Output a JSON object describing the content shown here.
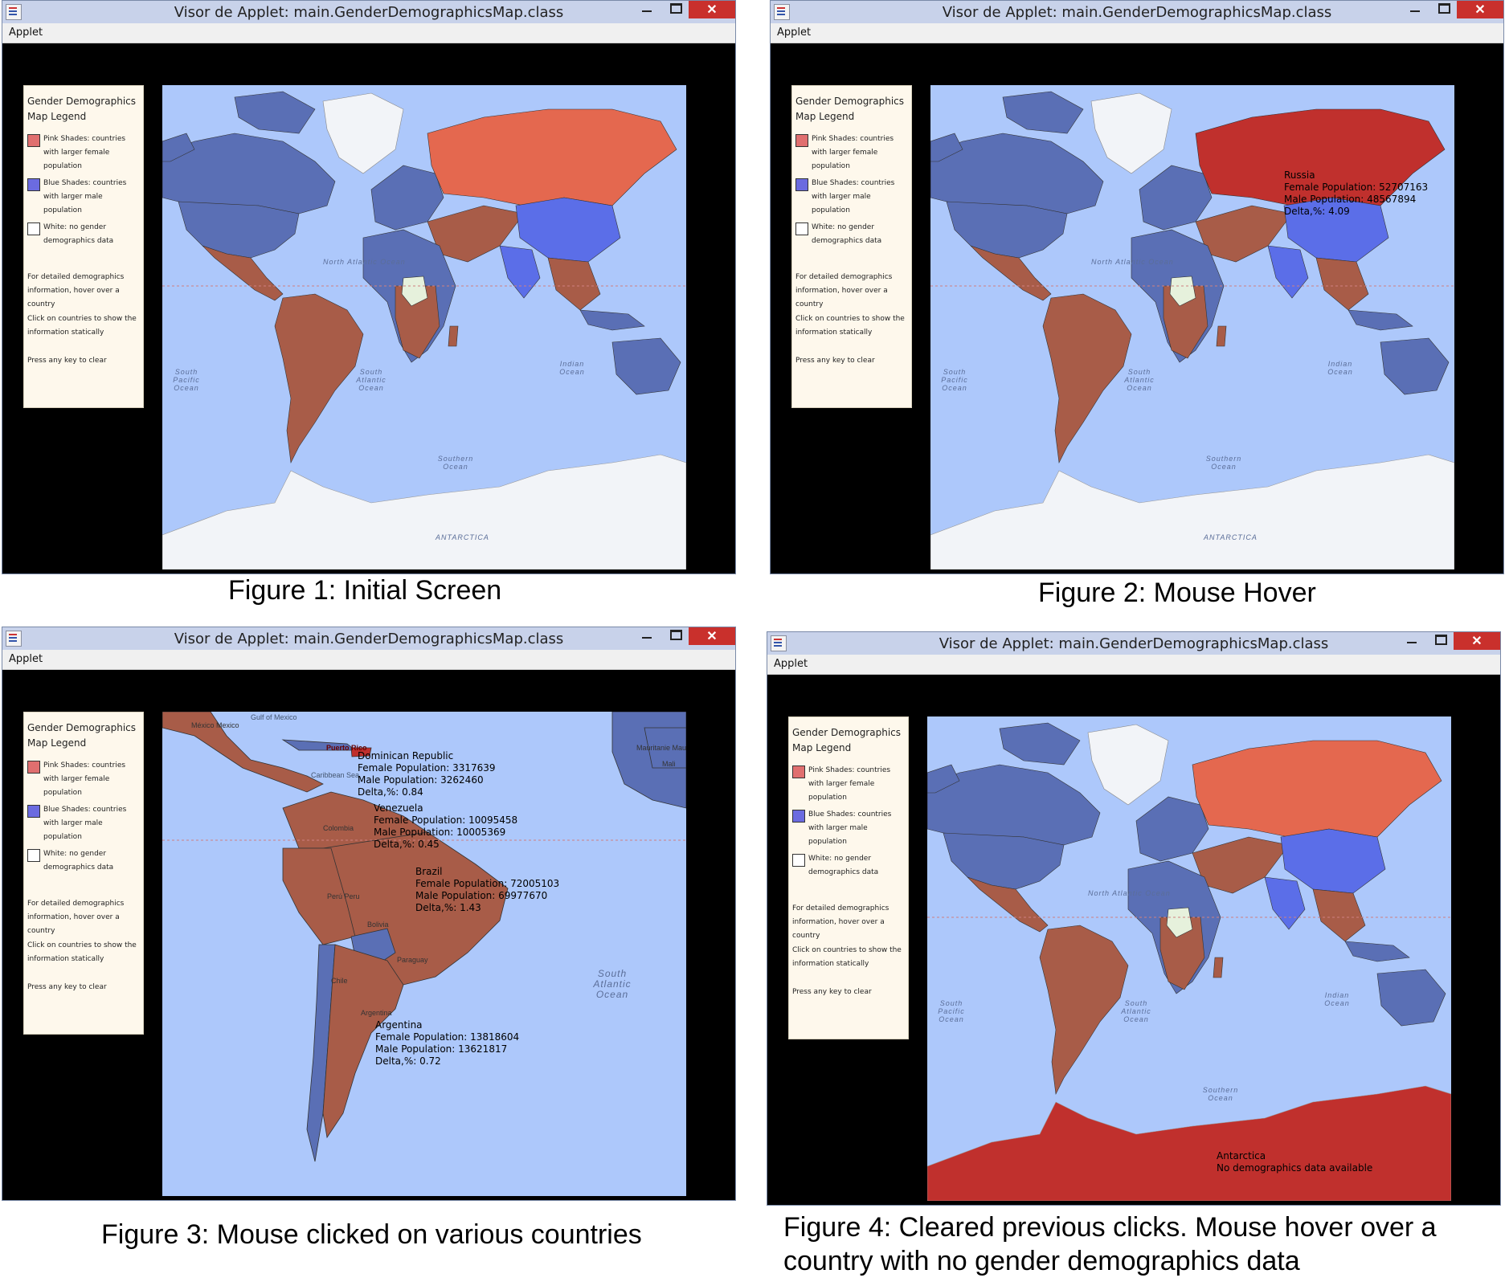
{
  "window_title": "Visor de Applet: main.GenderDemographicsMap.class",
  "menu_applet": "Applet",
  "legend": {
    "title": "Gender Demographics Map Legend",
    "pink": "Pink Shades: countries with larger female population",
    "blue": "Blue Shades: countries with larger male population",
    "white": "White: no gender demographics data",
    "hover_note": "For detailed demographics information, hover over a country",
    "click_note": "Click on countries to show the information statically",
    "clear_note": "Press any key to clear"
  },
  "colors": {
    "pink_swatch": "#e06f6f",
    "blue_swatch": "#6b6be0",
    "female_fill": "#a85c48",
    "male_fill": "#5a6fb5",
    "selected_female": "#e4684f",
    "hovered": "#c0302d",
    "ocean": "#adc8fb",
    "ice": "#f2f4f8"
  },
  "ocean_labels": {
    "north_atlantic": "North Atlantic Ocean",
    "south_pacific": "South Pacific Ocean",
    "south_atlantic": "South Atlantic Ocean",
    "indian": "Indian Ocean",
    "southern": "Southern Ocean",
    "antarctica": "ANTARCTICA"
  },
  "figure2_tooltip": {
    "country": "Russia",
    "female": "Female Population: 52707163",
    "male": "Male Population: 48567894",
    "delta": "Delta,%: 4.09"
  },
  "figure3_tooltips": [
    {
      "country": "Dominican Republic",
      "female": "Female Population: 3317639",
      "male": "Male Population: 3262460",
      "delta": "Delta,%: 0.84"
    },
    {
      "country": "Venezuela",
      "female": "Female Population: 10095458",
      "male": "Male Population: 10005369",
      "delta": "Delta,%: 0.45"
    },
    {
      "country": "Brazil",
      "female": "Female Population: 72005103",
      "male": "Male Population: 69977670",
      "delta": "Delta,%: 1.43"
    },
    {
      "country": "Argentina",
      "female": "Female Population: 13818604",
      "male": "Male Population: 13621817",
      "delta": "Delta,%: 0.72"
    }
  ],
  "figure3_labels": {
    "puerto_rico": "Puerto Rico",
    "gulf_of_mexico": "Gulf of Mexico",
    "mexico": "México Mexico",
    "caribbean": "Caribbean Sea",
    "colombia": "Colombia",
    "peru": "Perú Peru",
    "bolivia": "Bolivia",
    "paraguay": "Paraguay",
    "chile": "Chile",
    "argentina_map": "Argentina",
    "mauritania": "Mauritanie Mauritania",
    "mali": "Mali",
    "south_atlantic": "South Atlantic Ocean"
  },
  "figure4_tooltip": {
    "country": "Antarctica",
    "note": "No demographics data available"
  },
  "captions": {
    "fig1": "Figure 1: Initial Screen",
    "fig2": "Figure 2: Mouse Hover",
    "fig3": "Figure 3: Mouse clicked on various countries",
    "fig4_line1": "Figure 4: Cleared previous clicks. Mouse hover over a",
    "fig4_line2": "country with no gender demographics data"
  }
}
